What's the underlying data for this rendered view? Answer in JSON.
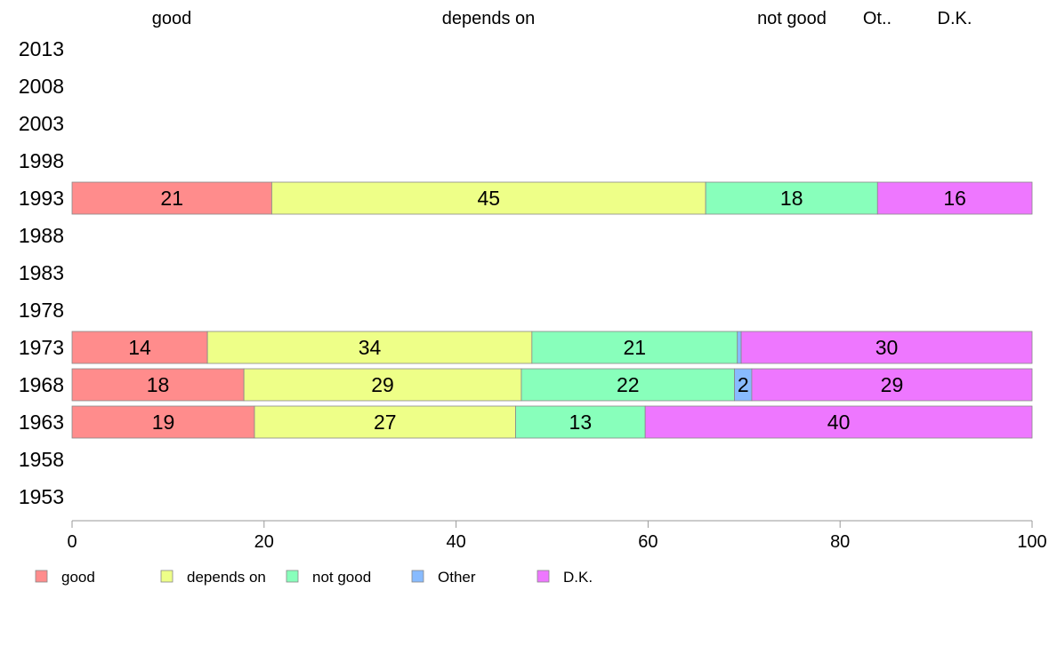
{
  "chart_data": {
    "type": "bar",
    "orientation": "horizontal",
    "stacked": true,
    "categories": [
      "2013",
      "2008",
      "2003",
      "1998",
      "1993",
      "1988",
      "1983",
      "1978",
      "1973",
      "1968",
      "1963",
      "1958",
      "1953"
    ],
    "top_labels": [
      "good",
      "depends on",
      "not good",
      "Ot..",
      "D.K."
    ],
    "series": [
      {
        "name": "good",
        "color": "#FF8C8C",
        "values": [
          null,
          null,
          null,
          null,
          20.8,
          null,
          null,
          null,
          14.1,
          17.9,
          19.0,
          null,
          null
        ],
        "labels": [
          "",
          "",
          "",
          "",
          "21",
          "",
          "",
          "",
          "14",
          "18",
          "19",
          "",
          ""
        ]
      },
      {
        "name": "depends on",
        "color": "#EEFF88",
        "values": [
          null,
          null,
          null,
          null,
          45.2,
          null,
          null,
          null,
          33.8,
          28.9,
          27.2,
          null,
          null
        ],
        "labels": [
          "",
          "",
          "",
          "",
          "45",
          "",
          "",
          "",
          "34",
          "29",
          "27",
          "",
          ""
        ]
      },
      {
        "name": "not good",
        "color": "#88FFBB",
        "values": [
          null,
          null,
          null,
          null,
          17.9,
          null,
          null,
          null,
          21.4,
          22.2,
          13.5,
          null,
          null
        ],
        "labels": [
          "",
          "",
          "",
          "",
          "18",
          "",
          "",
          "",
          "21",
          "22",
          "13",
          "",
          ""
        ]
      },
      {
        "name": "Other",
        "color": "#88BBFF",
        "values": [
          null,
          null,
          null,
          null,
          0.0,
          null,
          null,
          null,
          0.4,
          1.8,
          0.0,
          null,
          null
        ],
        "labels": [
          "",
          "",
          "",
          "",
          "",
          "",
          "",
          "",
          "",
          "2",
          "",
          "",
          ""
        ]
      },
      {
        "name": "D.K.",
        "color": "#EE77FF",
        "values": [
          null,
          null,
          null,
          null,
          16.1,
          null,
          null,
          null,
          30.3,
          29.2,
          40.3,
          null,
          null
        ],
        "labels": [
          "",
          "",
          "",
          "",
          "16",
          "",
          "",
          "",
          "30",
          "29",
          "40",
          "",
          ""
        ]
      }
    ],
    "xlim": [
      0,
      100
    ],
    "xticks": [
      0,
      20,
      40,
      60,
      80,
      100
    ],
    "xtick_labels": [
      "0",
      "20",
      "40",
      "60",
      "80",
      "100"
    ],
    "legend_position": "bottom",
    "grid": false
  }
}
